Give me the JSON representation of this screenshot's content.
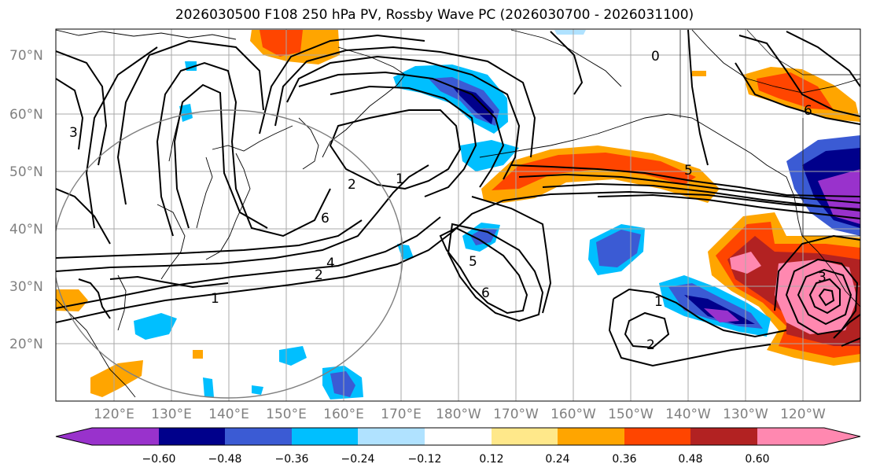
{
  "title": "2026030500 F108 250 hPa PV, Rossby Wave PC (2026030700 - 2026031100)",
  "lat_labels": [
    "70°N",
    "60°N",
    "50°N",
    "40°N",
    "30°N",
    "20°N"
  ],
  "lon_labels": [
    "120°E",
    "130°E",
    "140°E",
    "150°E",
    "160°E",
    "170°E",
    "180°W",
    "170°W",
    "160°W",
    "150°W",
    "140°W",
    "130°W",
    "120°W"
  ],
  "colorbar": {
    "ticks": [
      "−0.60",
      "−0.48",
      "−0.36",
      "−0.24",
      "−0.12",
      "0.12",
      "0.24",
      "0.36",
      "0.48",
      "0.60"
    ],
    "colors": [
      "#9932cc",
      "#00008b",
      "#3b5bd4",
      "#00bfff",
      "#b0e2ff",
      "#ffffff",
      "#ffe88a",
      "#ffa500",
      "#ff4500",
      "#b22222",
      "#ff88b0"
    ]
  },
  "contour_labels": [
    "1",
    "1",
    "1",
    "2",
    "2",
    "2",
    "3",
    "4",
    "5",
    "5",
    "6",
    "6",
    "6",
    "0",
    "3"
  ],
  "colors": {
    "axis_label": "#808080",
    "contour": "#000000",
    "grid": "#a0a0a0"
  }
}
